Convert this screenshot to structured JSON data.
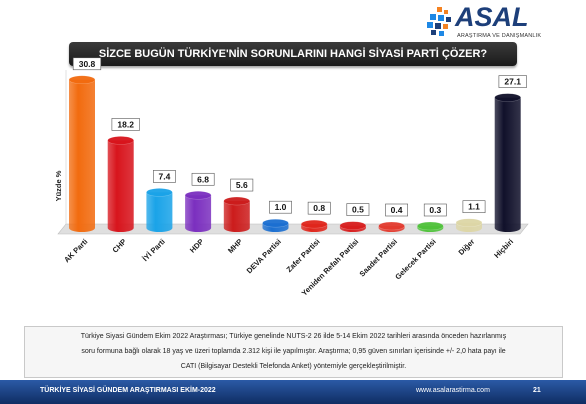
{
  "logo": {
    "name": "ASAL",
    "subtitle": "ARAŞTIRMA VE DANIŞMANLIK",
    "colors": [
      "#f58220",
      "#1e88e5",
      "#1d3f7a"
    ]
  },
  "title": "SİZCE BUGÜN TÜRKİYE'NİN SORUNLARINI HANGİ SİYASİ PARTİ ÇÖZER?",
  "chart_data": {
    "type": "bar",
    "ylabel": "Yüzde %",
    "categories": [
      "AK Parti",
      "CHP",
      "İYİ Parti",
      "HDP",
      "MHP",
      "DEVA Partisi",
      "Zafer Partisi",
      "Yeniden Refah Partisi",
      "Saadet Partisi",
      "Gelecek Partisi",
      "Diğer",
      "Hiçbiri"
    ],
    "values": [
      30.8,
      18.2,
      7.4,
      6.8,
      5.6,
      1.0,
      0.8,
      0.5,
      0.4,
      0.3,
      1.1,
      27.1
    ],
    "value_labels": [
      "30.8",
      "18.2",
      "7.4",
      "6.8",
      "5.6",
      "1.0",
      "0.8",
      "0.5",
      "0.4",
      "0.3",
      "1.1",
      "27.1"
    ],
    "colors": [
      "#f26b0f",
      "#d8141c",
      "#1aa3e8",
      "#7b2fbf",
      "#cc1c1c",
      "#1b6fd1",
      "#e0261c",
      "#d81e1e",
      "#e33b2f",
      "#4fc23a",
      "#ddd6a6",
      "#10102a"
    ],
    "ylim": [
      0,
      32
    ],
    "grid": false,
    "legend": "none"
  },
  "note": {
    "line1": "Türkiye Siyasi Gündem Ekim 2022 Araştırması; Türkiye genelinde NUTS-2 26 ilde 5-14 Ekim 2022 tarihleri arasında önceden hazırlanmış",
    "line2": "soru formuna bağlı olarak 18 yaş ve üzeri toplamda 2.312 kişi ile yapılmıştır. Araştırma; 0,95 güven sınırları içerisinde +/- 2,0 hata payı ile",
    "line3": "CATI (Bilgisayar Destekli Telefonda Anket) yöntemiyle gerçekleştirilmiştir."
  },
  "footer": {
    "left": "TÜRKİYE SİYASİ GÜNDEM ARAŞTIRMASI EKİM-2022",
    "url": "www.asalarastirma.com",
    "page": "21"
  }
}
